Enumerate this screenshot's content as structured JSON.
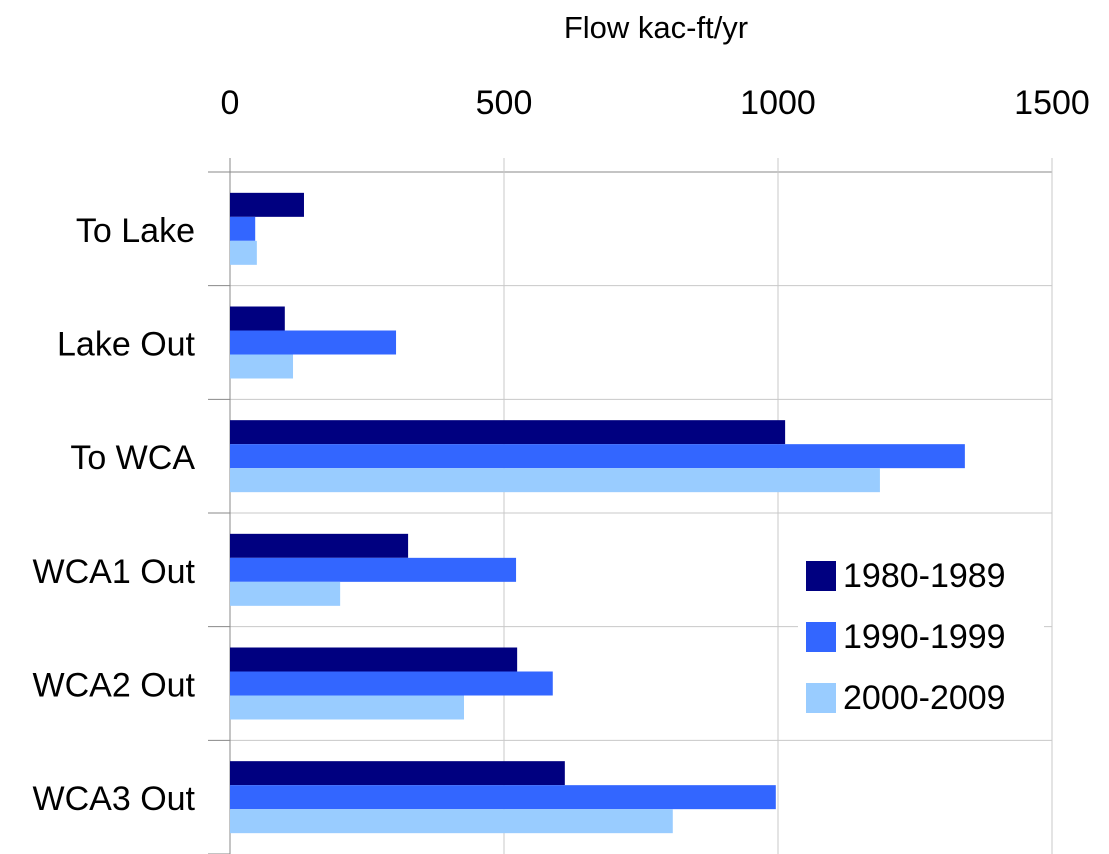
{
  "chart_data": {
    "type": "hbar",
    "title": "Flow kac-ft/yr",
    "categories": [
      "To Lake",
      "Lake Out",
      "To WCA",
      "WCA1 Out",
      "WCA2 Out",
      "WCA3 Out"
    ],
    "series": [
      {
        "name": "1980-1989",
        "color": "#000080",
        "values": [
          135,
          100,
          1013,
          325,
          524,
          611
        ]
      },
      {
        "name": "1990-1999",
        "color": "#3366ff",
        "values": [
          46,
          303,
          1341,
          522,
          589,
          996
        ]
      },
      {
        "name": "2000-2009",
        "color": "#99ccff",
        "values": [
          49,
          115,
          1186,
          201,
          427,
          808
        ]
      }
    ],
    "xlim": [
      0,
      1500
    ],
    "xticks": [
      0,
      500,
      1000,
      1500
    ],
    "grid": true,
    "legend": "right"
  }
}
